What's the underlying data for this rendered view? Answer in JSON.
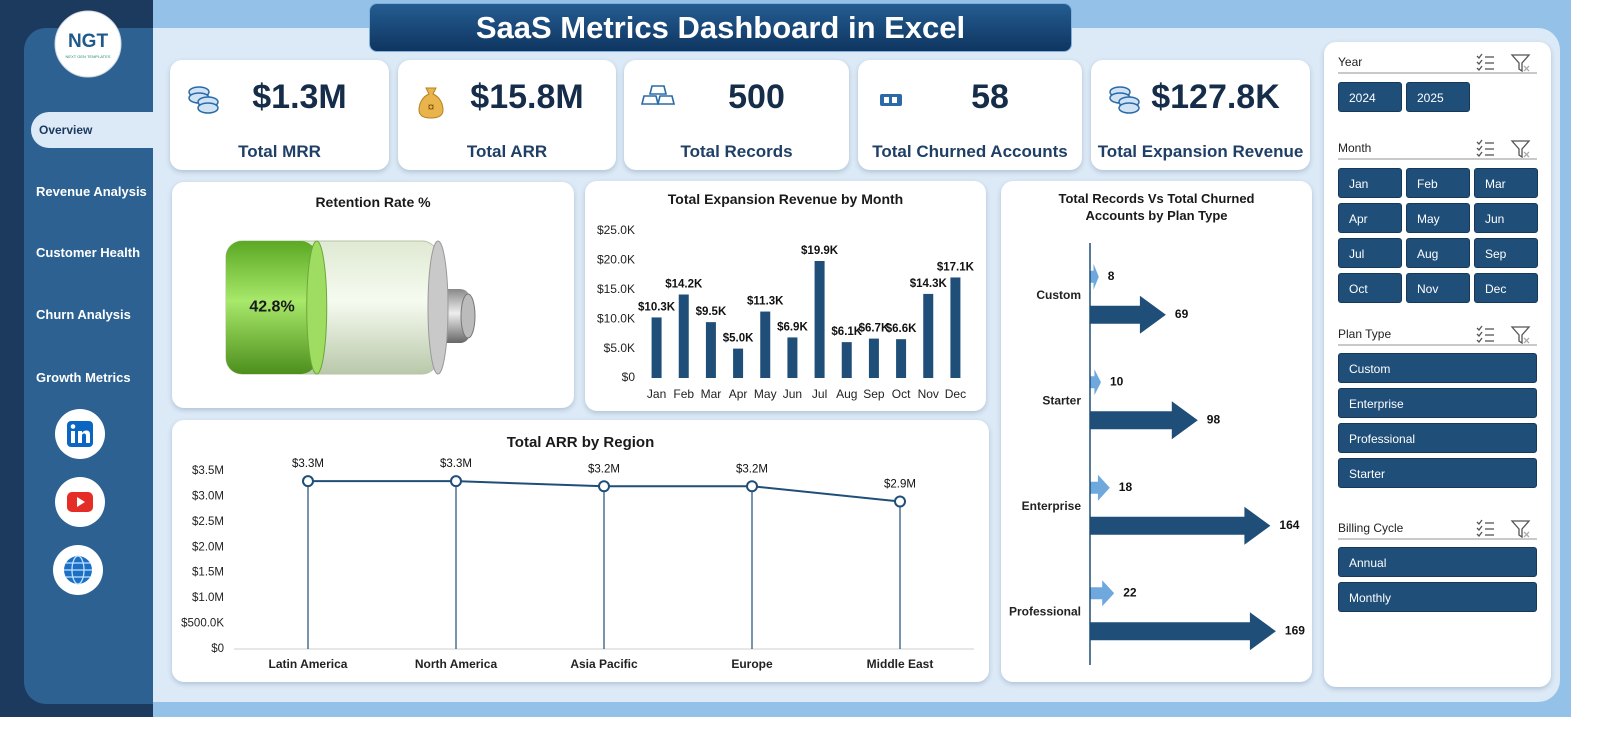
{
  "header": {
    "title": "SaaS Metrics Dashboard in Excel"
  },
  "sidebar": {
    "logo": "NGT",
    "logo_subtitle": "NEXT GEN TEMPLATES",
    "nav": [
      "Overview",
      "Revenue Analysis",
      "Customer Health",
      "Churn Analysis",
      "Growth Metrics"
    ]
  },
  "kpis": [
    {
      "value": "$1.3M",
      "label": "Total MRR"
    },
    {
      "value": "$15.8M",
      "label": "Total ARR"
    },
    {
      "value": "500",
      "label": "Total Records"
    },
    {
      "value": "58",
      "label": "Total Churned Accounts"
    },
    {
      "value": "$127.8K",
      "label": "Total Expansion Revenue"
    }
  ],
  "chart_data": [
    {
      "type": "battery",
      "title": "Retention Rate %",
      "values": [
        42.8
      ],
      "value_labels": [
        "42.8%"
      ],
      "xlim": [
        0,
        100
      ],
      "color": "#6cc531"
    },
    {
      "type": "bar",
      "title": "Total Expansion Revenue by Month",
      "categories": [
        "Jan",
        "Feb",
        "Mar",
        "Apr",
        "May",
        "Jun",
        "Jul",
        "Aug",
        "Sep",
        "Oct",
        "Nov",
        "Dec"
      ],
      "values": [
        10300,
        14200,
        9500,
        5000,
        11300,
        6900,
        19900,
        6100,
        6700,
        6600,
        14300,
        17100
      ],
      "value_labels": [
        "$10.3K",
        "$14.2K",
        "$9.5K",
        "$5.0K",
        "$11.3K",
        "$6.9K",
        "$19.9K",
        "$6.1K",
        "$6.7K",
        "$6.6K",
        "$14.3K",
        "$17.1K"
      ],
      "ylim": [
        0,
        25000
      ],
      "yticks": [
        {
          "value": 0,
          "label": "$0"
        },
        {
          "value": 5000,
          "label": "$5.0K"
        },
        {
          "value": 10000,
          "label": "$10.0K"
        },
        {
          "value": 15000,
          "label": "$15.0K"
        },
        {
          "value": 20000,
          "label": "$20.0K"
        },
        {
          "value": 25000,
          "label": "$25.0K"
        }
      ],
      "color": "#1f4e79"
    },
    {
      "type": "line",
      "title": "Total ARR by Region",
      "categories": [
        "Latin America",
        "North America",
        "Asia Pacific",
        "Europe",
        "Middle East"
      ],
      "values": [
        3300000,
        3300000,
        3200000,
        3200000,
        2900000
      ],
      "value_labels": [
        "$3.3M",
        "$3.3M",
        "$3.2M",
        "$3.2M",
        "$2.9M"
      ],
      "ylim": [
        0,
        3500000
      ],
      "yticks": [
        {
          "value": 0,
          "label": "$0"
        },
        {
          "value": 500000,
          "label": "$500.0K"
        },
        {
          "value": 1000000,
          "label": "$1.0M"
        },
        {
          "value": 1500000,
          "label": "$1.5M"
        },
        {
          "value": 2000000,
          "label": "$2.0M"
        },
        {
          "value": 2500000,
          "label": "$2.5M"
        },
        {
          "value": 3000000,
          "label": "$3.0M"
        },
        {
          "value": 3500000,
          "label": "$3.5M"
        }
      ],
      "color": "#1f4e79"
    },
    {
      "type": "hbar",
      "title": "Total Records Vs Total Churned Accounts by Plan Type",
      "categories": [
        "Custom",
        "Starter",
        "Enterprise",
        "Professional"
      ],
      "series": [
        {
          "color": "#6fa8dc",
          "values": [
            8,
            10,
            18,
            22
          ]
        },
        {
          "color": "#1f4e79",
          "values": [
            69,
            98,
            164,
            169
          ]
        }
      ],
      "xlim": [
        0,
        200
      ]
    }
  ],
  "filters": [
    {
      "title": "Year",
      "items": [
        "2024",
        "2025"
      ]
    },
    {
      "title": "Month",
      "items": [
        "Jan",
        "Feb",
        "Mar",
        "Apr",
        "May",
        "Jun",
        "Jul",
        "Aug",
        "Sep",
        "Oct",
        "Nov",
        "Dec"
      ]
    },
    {
      "title": "Plan Type",
      "items": [
        "Custom",
        "Enterprise",
        "Professional",
        "Starter"
      ]
    },
    {
      "title": "Billing Cycle",
      "items": [
        "Annual",
        "Monthly"
      ]
    }
  ]
}
